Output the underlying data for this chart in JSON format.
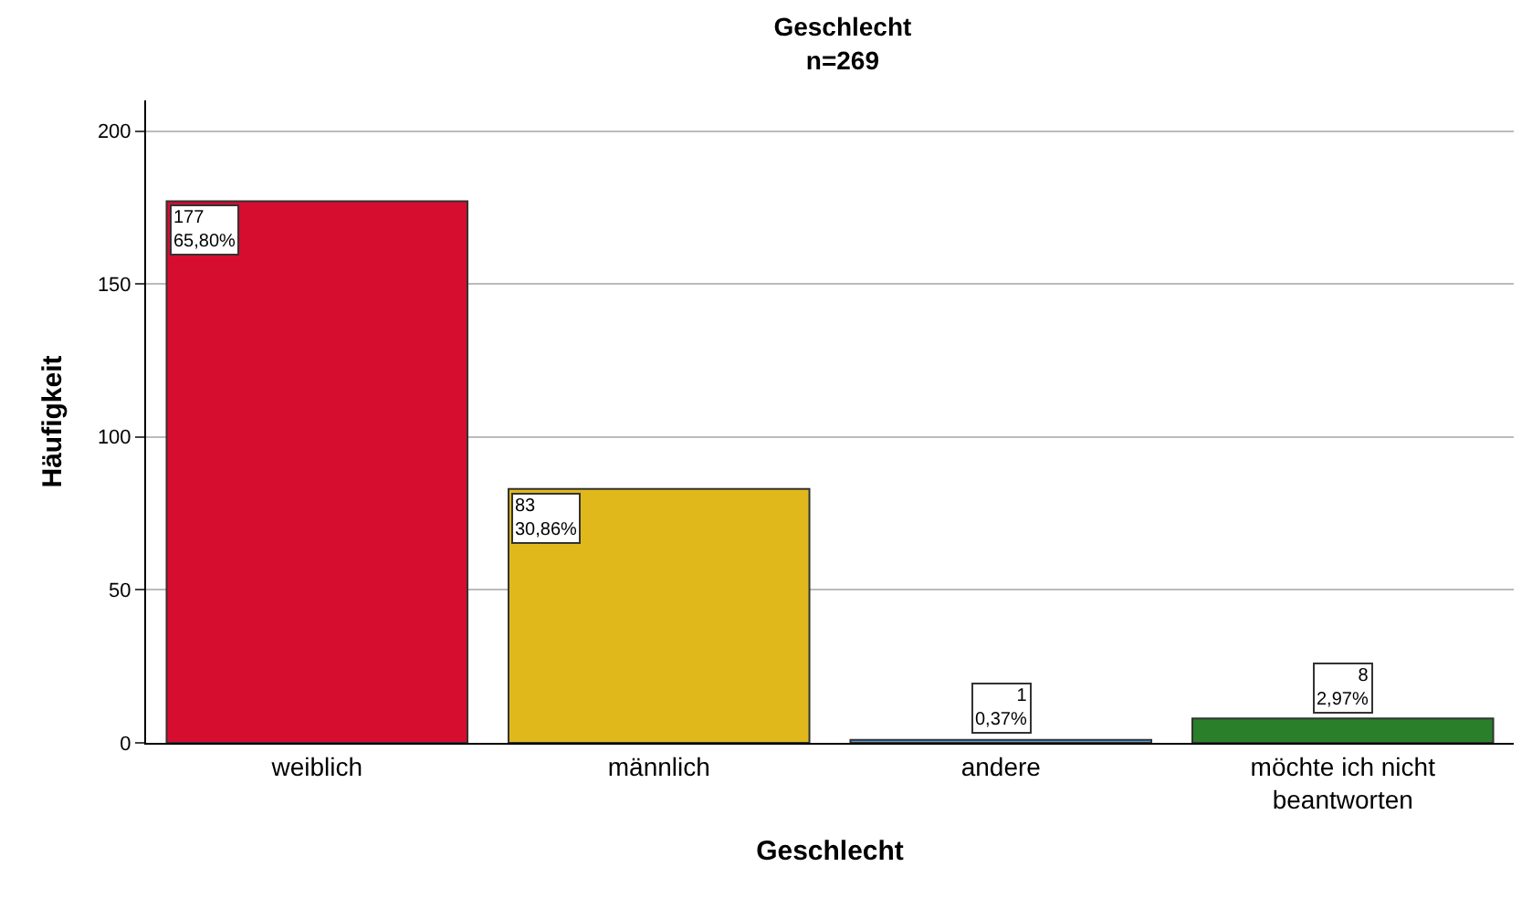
{
  "chart_data": {
    "type": "bar",
    "title": "Geschlecht",
    "subtitle": "n=269",
    "xlabel": "Geschlecht",
    "ylabel": "Häufigkeit",
    "categories": [
      "weiblich",
      "männlich",
      "andere",
      "möchte ich nicht beantworten"
    ],
    "values": [
      177,
      83,
      1,
      8
    ],
    "colors": [
      "#d60d2f",
      "#e0b81c",
      "#5b9bd5",
      "#2a7f2a"
    ],
    "value_labels": [
      "177\n65,80%",
      "83\n30,86%",
      "1\n0,37%",
      "8\n2,97%"
    ],
    "ylim": [
      0,
      210
    ],
    "yticks": [
      0,
      50,
      100,
      150,
      200
    ],
    "grid": "y"
  }
}
